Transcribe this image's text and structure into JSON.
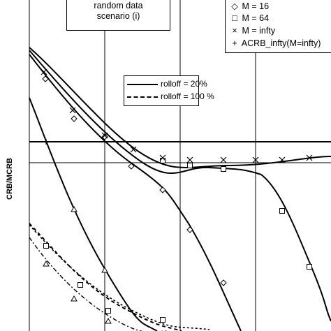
{
  "chart_data": {
    "type": "line",
    "ylabel": "CRB/MCRB",
    "xlabel": "",
    "title": "",
    "grid": true,
    "scenario_box": [
      "random data",
      "scenario (i)"
    ],
    "legend": {
      "placement": "top-right",
      "entries": [
        {
          "marker": "diamond",
          "label": "M = 16"
        },
        {
          "marker": "square",
          "label": "M = 64"
        },
        {
          "marker": "cross",
          "label": "M = infty"
        },
        {
          "marker": "plus",
          "label": "ACRB_infty(M=infty)"
        }
      ]
    },
    "rolloff_legend": {
      "placement": "upper-center",
      "entries": [
        {
          "style": "solid",
          "label": "rolloff = 20%"
        },
        {
          "style": "dashed",
          "label": "rolloff = 100 %"
        }
      ]
    },
    "x_range": [
      0,
      1
    ],
    "y_range": [
      0,
      1
    ],
    "series": [
      {
        "style": "solid",
        "marker": "diamond",
        "x": [
          0.0,
          0.05,
          0.1,
          0.2,
          0.3,
          0.4,
          0.5,
          0.6,
          0.7,
          0.8,
          0.9,
          1.0
        ],
        "y": [
          0.86,
          0.84,
          0.81,
          0.73,
          0.64,
          0.56,
          0.48,
          0.42,
          0.34,
          0.26,
          0.18,
          0.12
        ]
      }
    ]
  },
  "marker_glyphs": {
    "diamond": "◇",
    "square": "□",
    "cross": "×",
    "plus": "+"
  }
}
